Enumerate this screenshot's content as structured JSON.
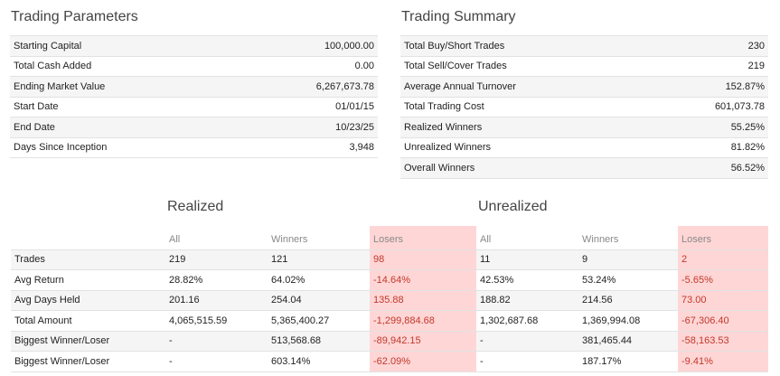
{
  "trading_parameters": {
    "title": "Trading Parameters",
    "rows": [
      {
        "label": "Starting Capital",
        "value": "100,000.00"
      },
      {
        "label": "Total Cash Added",
        "value": "0.00"
      },
      {
        "label": "Ending Market Value",
        "value": "6,267,673.78"
      },
      {
        "label": "Start Date",
        "value": "01/01/15"
      },
      {
        "label": "End Date",
        "value": "10/23/25"
      },
      {
        "label": "Days Since Inception",
        "value": "3,948"
      }
    ]
  },
  "trading_summary": {
    "title": "Trading Summary",
    "rows": [
      {
        "label": "Total Buy/Short Trades",
        "value": "230"
      },
      {
        "label": "Total Sell/Cover Trades",
        "value": "219"
      },
      {
        "label": "Average Annual Turnover",
        "value": "152.87%"
      },
      {
        "label": "Total Trading Cost",
        "value": "601,073.78"
      },
      {
        "label": "Realized Winners",
        "value": "55.25%"
      },
      {
        "label": "Unrealized Winners",
        "value": "81.82%"
      },
      {
        "label": "Overall Winners",
        "value": "56.52%"
      }
    ]
  },
  "performance": {
    "realized_title": "Realized",
    "unrealized_title": "Unrealized",
    "columns": [
      "All",
      "Winners",
      "Losers",
      "All",
      "Winners",
      "Losers"
    ],
    "rows": [
      {
        "label": "Trades",
        "values": [
          "219",
          "121",
          "98",
          "11",
          "9",
          "2"
        ]
      },
      {
        "label": "Avg Return",
        "values": [
          "28.82%",
          "64.02%",
          "-14.64%",
          "42.53%",
          "53.24%",
          "-5.65%"
        ]
      },
      {
        "label": "Avg Days Held",
        "values": [
          "201.16",
          "254.04",
          "135.88",
          "188.82",
          "214.56",
          "73.00"
        ]
      },
      {
        "label": "Total Amount",
        "values": [
          "4,065,515.59",
          "5,365,400.27",
          "-1,299,884.68",
          "1,302,687.68",
          "1,369,994.08",
          "-67,306.40"
        ]
      },
      {
        "label": "Biggest Winner/Loser",
        "values": [
          "-",
          "513,568.68",
          "-89,942.15",
          "-",
          "381,465.44",
          "-58,163.53"
        ]
      },
      {
        "label": "Biggest Winner/Loser",
        "values": [
          "-",
          "603.14%",
          "-62.09%",
          "-",
          "187.17%",
          "-9.41%"
        ]
      }
    ]
  }
}
